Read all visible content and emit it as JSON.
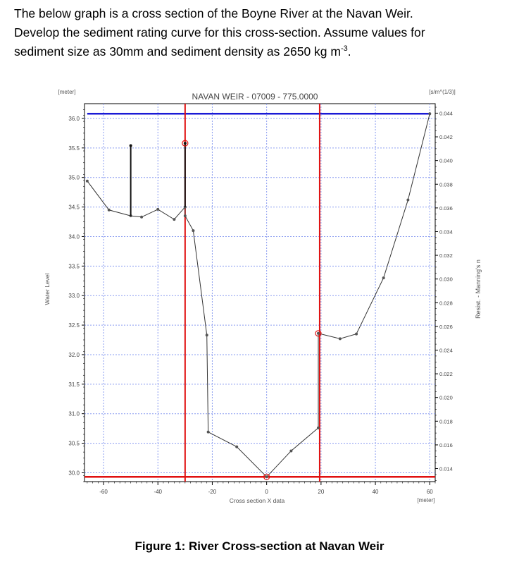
{
  "question": {
    "line1": "The below graph is a cross section of the Boyne River at the Navan Weir.",
    "line2": "Develop the sediment rating curve for this cross-section. Assume values for",
    "line3_prefix": "sediment size as 30mm and sediment density as 2650 kg m",
    "line3_sup": "-3",
    "line3_suffix": "."
  },
  "caption": "Figure 1: River Cross-section at Navan Weir",
  "chart_data": {
    "type": "line",
    "title": "NAVAN WEIR - 07009 - 775.0000",
    "ylabel": "Water Level",
    "yunit": "[meter]",
    "xlabel": "Cross section X data",
    "xunit": "[meter]",
    "y2label": "Resist. - Manning's n",
    "y2unit": "[s/m^(1/3)]",
    "xlim": [
      -67,
      62
    ],
    "ylim": [
      29.85,
      36.25
    ],
    "y2lim": [
      0.0129,
      0.0448
    ],
    "x_ticks": [
      -60,
      -40,
      -20,
      0,
      20,
      40,
      60
    ],
    "y_ticks": [
      "30.0",
      "30.5",
      "31.0",
      "31.5",
      "32.0",
      "32.5",
      "33.0",
      "33.5",
      "34.0",
      "34.5",
      "35.0",
      "35.5",
      "36.0"
    ],
    "y2_ticks": [
      "0.014",
      "0.016",
      "0.018",
      "0.020",
      "0.022",
      "0.024",
      "0.026",
      "0.028",
      "0.030",
      "0.032",
      "0.034",
      "0.036",
      "0.038",
      "0.040",
      "0.042",
      "0.044"
    ],
    "grid": true,
    "series": [
      {
        "x": [
          -66,
          -58,
          -50,
          -46,
          -40,
          -34,
          -30,
          -30,
          -27,
          -22,
          -21.5,
          -11,
          0,
          9,
          19,
          19,
          27,
          33,
          43,
          52,
          60
        ],
        "y": [
          34.94,
          34.45,
          34.35,
          34.33,
          34.46,
          34.29,
          34.5,
          34.35,
          34.1,
          32.33,
          30.69,
          30.44,
          29.93,
          30.37,
          30.76,
          32.36,
          32.27,
          32.35,
          33.3,
          34.62,
          36.08
        ]
      }
    ],
    "water_level": 36.08,
    "bed_level": 29.93,
    "markers": [
      {
        "type": "vertical-line",
        "x": -30
      },
      {
        "type": "vertical-line",
        "x": 19.5
      },
      {
        "type": "structure-bar",
        "x": -50,
        "y_from": 34.35,
        "y_to": 35.54
      },
      {
        "type": "structure-bar",
        "x": -30,
        "y_from": 34.5,
        "y_to": 35.58
      },
      {
        "type": "circle",
        "x": -30,
        "y": 35.58
      },
      {
        "type": "circle",
        "x": 19,
        "y": 32.36
      },
      {
        "type": "circle",
        "x": 0,
        "y": 29.93
      }
    ],
    "colors": {
      "data_line": "#333333",
      "water_line": "#1a1ad6",
      "bed_line": "#e01010",
      "markers": "#e01010",
      "grid": "#8a9cf0",
      "frame": "#000000"
    }
  }
}
